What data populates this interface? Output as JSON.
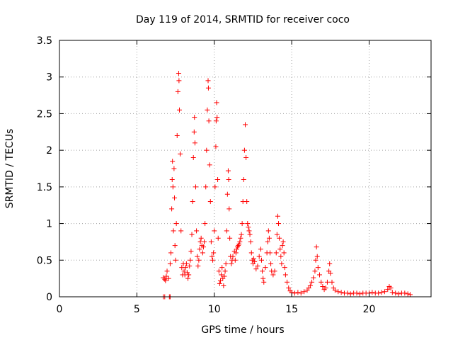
{
  "chart_data": {
    "type": "scatter",
    "title": "Day 119 of 2014, SRMTID for receiver coco",
    "xlabel": "GPS time / hours",
    "ylabel": "SRMTID / TECUs",
    "xlim": [
      0,
      24
    ],
    "ylim": [
      0,
      3.5
    ],
    "xticks": [
      0,
      5,
      10,
      15,
      20
    ],
    "yticks": [
      0,
      0.5,
      1,
      1.5,
      2,
      2.5,
      3,
      3.5
    ],
    "xtick_labels": [
      "0",
      "5",
      "10",
      "15",
      "20"
    ],
    "ytick_labels": [
      "0",
      "0.5",
      "1",
      "1.5",
      "2",
      "2.5",
      "3",
      "3.5"
    ],
    "grid": true,
    "marker": "plus",
    "series": [
      {
        "color": "#ff0000",
        "points": [
          [
            6.7,
            0.0
          ],
          [
            6.8,
            0.0
          ],
          [
            7.1,
            0.0
          ],
          [
            7.15,
            0.0
          ],
          [
            6.7,
            0.26
          ],
          [
            6.8,
            0.24
          ],
          [
            6.85,
            0.22
          ],
          [
            6.9,
            0.28
          ],
          [
            6.95,
            0.35
          ],
          [
            7.05,
            0.25
          ],
          [
            7.15,
            0.45
          ],
          [
            7.2,
            0.6
          ],
          [
            7.25,
            1.2
          ],
          [
            7.28,
            1.6
          ],
          [
            7.3,
            1.85
          ],
          [
            7.33,
            1.5
          ],
          [
            7.36,
            0.9
          ],
          [
            7.4,
            1.75
          ],
          [
            7.43,
            1.35
          ],
          [
            7.46,
            0.7
          ],
          [
            7.5,
            0.5
          ],
          [
            7.55,
            1.0
          ],
          [
            7.6,
            2.2
          ],
          [
            7.65,
            2.8
          ],
          [
            7.7,
            3.05
          ],
          [
            7.72,
            2.95
          ],
          [
            7.75,
            2.55
          ],
          [
            7.8,
            1.95
          ],
          [
            7.85,
            0.9
          ],
          [
            7.9,
            0.4
          ],
          [
            7.95,
            0.3
          ],
          [
            8.0,
            0.45
          ],
          [
            8.05,
            0.35
          ],
          [
            8.1,
            0.3
          ],
          [
            8.15,
            0.4
          ],
          [
            8.2,
            0.45
          ],
          [
            8.25,
            0.33
          ],
          [
            8.3,
            0.25
          ],
          [
            8.35,
            0.3
          ],
          [
            8.4,
            0.42
          ],
          [
            8.45,
            0.5
          ],
          [
            8.5,
            0.62
          ],
          [
            8.55,
            0.85
          ],
          [
            8.6,
            1.3
          ],
          [
            8.65,
            1.9
          ],
          [
            8.7,
            2.25
          ],
          [
            8.72,
            2.45
          ],
          [
            8.75,
            2.1
          ],
          [
            8.8,
            1.5
          ],
          [
            8.85,
            0.9
          ],
          [
            8.9,
            0.55
          ],
          [
            8.95,
            0.42
          ],
          [
            9.0,
            0.5
          ],
          [
            9.05,
            0.65
          ],
          [
            9.1,
            0.75
          ],
          [
            9.15,
            0.8
          ],
          [
            9.2,
            0.7
          ],
          [
            9.25,
            0.6
          ],
          [
            9.3,
            0.68
          ],
          [
            9.35,
            0.75
          ],
          [
            9.4,
            1.0
          ],
          [
            9.45,
            1.5
          ],
          [
            9.5,
            2.0
          ],
          [
            9.55,
            2.55
          ],
          [
            9.6,
            2.95
          ],
          [
            9.62,
            2.85
          ],
          [
            9.65,
            2.4
          ],
          [
            9.7,
            1.8
          ],
          [
            9.75,
            1.3
          ],
          [
            9.8,
            0.75
          ],
          [
            9.85,
            0.55
          ],
          [
            9.9,
            0.5
          ],
          [
            9.95,
            0.6
          ],
          [
            10.0,
            0.9
          ],
          [
            10.05,
            1.5
          ],
          [
            10.1,
            2.05
          ],
          [
            10.12,
            2.4
          ],
          [
            10.15,
            2.65
          ],
          [
            10.18,
            2.45
          ],
          [
            10.22,
            1.6
          ],
          [
            10.25,
            0.8
          ],
          [
            10.3,
            0.35
          ],
          [
            10.35,
            0.18
          ],
          [
            10.4,
            0.22
          ],
          [
            10.45,
            0.3
          ],
          [
            10.5,
            0.4
          ],
          [
            10.55,
            0.25
          ],
          [
            10.6,
            0.15
          ],
          [
            10.65,
            0.28
          ],
          [
            10.7,
            0.35
          ],
          [
            10.75,
            0.45
          ],
          [
            10.8,
            0.9
          ],
          [
            10.85,
            1.4
          ],
          [
            10.9,
            1.72
          ],
          [
            10.93,
            1.6
          ],
          [
            10.96,
            1.2
          ],
          [
            11.0,
            0.8
          ],
          [
            11.05,
            0.55
          ],
          [
            11.1,
            0.45
          ],
          [
            11.15,
            0.5
          ],
          [
            11.2,
            0.55
          ],
          [
            11.3,
            0.62
          ],
          [
            11.35,
            0.5
          ],
          [
            11.4,
            0.6
          ],
          [
            11.45,
            0.65
          ],
          [
            11.5,
            0.68
          ],
          [
            11.55,
            0.7
          ],
          [
            11.6,
            0.72
          ],
          [
            11.65,
            0.75
          ],
          [
            11.7,
            0.8
          ],
          [
            11.75,
            0.85
          ],
          [
            11.8,
            1.0
          ],
          [
            11.85,
            1.3
          ],
          [
            11.9,
            1.6
          ],
          [
            11.95,
            2.0
          ],
          [
            12.0,
            2.35
          ],
          [
            12.05,
            1.9
          ],
          [
            12.1,
            1.3
          ],
          [
            12.15,
            1.0
          ],
          [
            12.2,
            0.95
          ],
          [
            12.25,
            0.9
          ],
          [
            12.3,
            0.85
          ],
          [
            12.35,
            0.75
          ],
          [
            12.4,
            0.6
          ],
          [
            12.45,
            0.5
          ],
          [
            12.5,
            0.45
          ],
          [
            12.55,
            0.52
          ],
          [
            12.6,
            0.48
          ],
          [
            12.7,
            0.38
          ],
          [
            12.8,
            0.42
          ],
          [
            12.9,
            0.55
          ],
          [
            13.0,
            0.65
          ],
          [
            13.05,
            0.5
          ],
          [
            13.1,
            0.35
          ],
          [
            13.15,
            0.25
          ],
          [
            13.2,
            0.2
          ],
          [
            13.3,
            0.4
          ],
          [
            13.4,
            0.6
          ],
          [
            13.45,
            0.75
          ],
          [
            13.5,
            0.9
          ],
          [
            13.55,
            0.8
          ],
          [
            13.6,
            0.6
          ],
          [
            13.65,
            0.45
          ],
          [
            13.7,
            0.35
          ],
          [
            13.8,
            0.3
          ],
          [
            13.9,
            0.35
          ],
          [
            14.0,
            0.6
          ],
          [
            14.05,
            0.85
          ],
          [
            14.1,
            1.1
          ],
          [
            14.15,
            1.0
          ],
          [
            14.2,
            0.8
          ],
          [
            14.25,
            0.65
          ],
          [
            14.3,
            0.55
          ],
          [
            14.35,
            0.45
          ],
          [
            14.4,
            0.7
          ],
          [
            14.45,
            0.75
          ],
          [
            14.5,
            0.6
          ],
          [
            14.55,
            0.4
          ],
          [
            14.6,
            0.3
          ],
          [
            14.7,
            0.2
          ],
          [
            14.8,
            0.12
          ],
          [
            14.9,
            0.08
          ],
          [
            15.0,
            0.06
          ],
          [
            15.2,
            0.05
          ],
          [
            15.4,
            0.06
          ],
          [
            15.6,
            0.05
          ],
          [
            15.8,
            0.07
          ],
          [
            16.0,
            0.09
          ],
          [
            16.1,
            0.12
          ],
          [
            16.2,
            0.15
          ],
          [
            16.3,
            0.2
          ],
          [
            16.4,
            0.26
          ],
          [
            16.5,
            0.35
          ],
          [
            16.55,
            0.5
          ],
          [
            16.6,
            0.68
          ],
          [
            16.65,
            0.55
          ],
          [
            16.7,
            0.4
          ],
          [
            16.8,
            0.3
          ],
          [
            16.9,
            0.2
          ],
          [
            17.0,
            0.14
          ],
          [
            17.1,
            0.1
          ],
          [
            17.2,
            0.12
          ],
          [
            17.3,
            0.2
          ],
          [
            17.4,
            0.35
          ],
          [
            17.45,
            0.45
          ],
          [
            17.5,
            0.32
          ],
          [
            17.6,
            0.2
          ],
          [
            17.7,
            0.12
          ],
          [
            17.8,
            0.09
          ],
          [
            18.0,
            0.07
          ],
          [
            18.2,
            0.06
          ],
          [
            18.4,
            0.05
          ],
          [
            18.6,
            0.05
          ],
          [
            18.8,
            0.04
          ],
          [
            19.0,
            0.05
          ],
          [
            19.2,
            0.05
          ],
          [
            19.4,
            0.04
          ],
          [
            19.6,
            0.05
          ],
          [
            19.8,
            0.05
          ],
          [
            20.0,
            0.05
          ],
          [
            20.2,
            0.06
          ],
          [
            20.4,
            0.05
          ],
          [
            20.6,
            0.05
          ],
          [
            20.8,
            0.06
          ],
          [
            21.0,
            0.07
          ],
          [
            21.2,
            0.1
          ],
          [
            21.3,
            0.14
          ],
          [
            21.4,
            0.12
          ],
          [
            21.5,
            0.06
          ],
          [
            21.7,
            0.05
          ],
          [
            21.9,
            0.04
          ],
          [
            22.1,
            0.05
          ],
          [
            22.3,
            0.05
          ],
          [
            22.5,
            0.04
          ],
          [
            22.65,
            0.03
          ]
        ]
      }
    ]
  }
}
